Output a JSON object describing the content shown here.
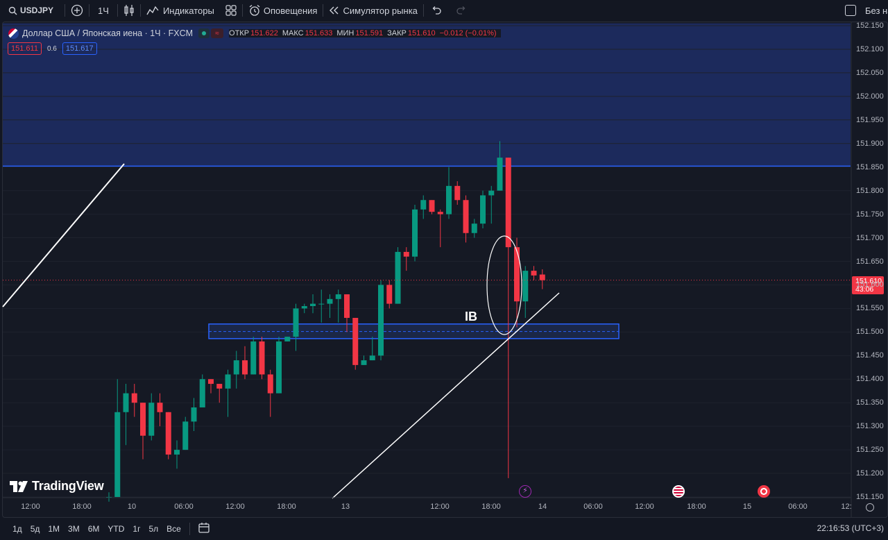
{
  "toolbar": {
    "symbol": "USDJPY",
    "interval": "1Ч",
    "indicators_label": "Индикаторы",
    "alerts_label": "Оповещения",
    "replay_label": "Симулятор рынка",
    "right_label": "Без на"
  },
  "legend": {
    "title": "Доллар США / Японская иена · 1Ч · FXCM",
    "open_key": "ОТКР",
    "open": "151.622",
    "high_key": "МАКС",
    "high": "151.633",
    "low_key": "МИН",
    "low": "151.591",
    "close_key": "ЗАКР",
    "close": "151.610",
    "change": "−0.012 (−0.01%)",
    "sell_price": "151.611",
    "spread": "0.6",
    "buy_price": "151.617"
  },
  "annotations": {
    "ib_label": "IB"
  },
  "last_price": {
    "price": "151.610",
    "countdown": "43:06"
  },
  "logo_text": "TradingView",
  "colors": {
    "background": "#131722",
    "up": "#089981",
    "down": "#f23645",
    "zone": "#2962ff"
  },
  "chart_data": {
    "type": "candlestick",
    "symbol": "USDJPY",
    "y_ticks": [
      "151.150",
      "151.200",
      "151.250",
      "151.300",
      "151.350",
      "151.400",
      "151.450",
      "151.500",
      "151.550",
      "151.600",
      "151.650",
      "151.700",
      "151.750",
      "151.800",
      "151.850",
      "151.900",
      "151.950",
      "152.000",
      "152.050",
      "152.100",
      "152.150"
    ],
    "x_ticks": [
      "12:00",
      "18:00",
      "10",
      "06:00",
      "12:00",
      "18:00",
      "13",
      "12:00",
      "18:00",
      "14",
      "06:00",
      "12:00",
      "18:00",
      "15",
      "06:00",
      "12:"
    ],
    "ylim": [
      151.15,
      152.155
    ],
    "candles": [
      {
        "o": 151.15,
        "h": 151.16,
        "l": 151.14,
        "c": 151.15
      },
      {
        "o": 151.15,
        "h": 151.4,
        "l": 151.15,
        "c": 151.33
      },
      {
        "o": 151.33,
        "h": 151.39,
        "l": 151.26,
        "c": 151.37
      },
      {
        "o": 151.37,
        "h": 151.39,
        "l": 151.32,
        "c": 151.35
      },
      {
        "o": 151.35,
        "h": 151.35,
        "l": 151.23,
        "c": 151.28
      },
      {
        "o": 151.28,
        "h": 151.37,
        "l": 151.27,
        "c": 151.35
      },
      {
        "o": 151.35,
        "h": 151.37,
        "l": 151.3,
        "c": 151.33
      },
      {
        "o": 151.33,
        "h": 151.33,
        "l": 151.23,
        "c": 151.24
      },
      {
        "o": 151.24,
        "h": 151.27,
        "l": 151.21,
        "c": 151.25
      },
      {
        "o": 151.25,
        "h": 151.32,
        "l": 151.25,
        "c": 151.31
      },
      {
        "o": 151.31,
        "h": 151.36,
        "l": 151.29,
        "c": 151.34
      },
      {
        "o": 151.34,
        "h": 151.41,
        "l": 151.34,
        "c": 151.4
      },
      {
        "o": 151.4,
        "h": 151.4,
        "l": 151.37,
        "c": 151.39
      },
      {
        "o": 151.39,
        "h": 151.39,
        "l": 151.35,
        "c": 151.38
      },
      {
        "o": 151.38,
        "h": 151.42,
        "l": 151.32,
        "c": 151.41
      },
      {
        "o": 151.41,
        "h": 151.46,
        "l": 151.38,
        "c": 151.44
      },
      {
        "o": 151.44,
        "h": 151.47,
        "l": 151.4,
        "c": 151.41
      },
      {
        "o": 151.41,
        "h": 151.49,
        "l": 151.41,
        "c": 151.48
      },
      {
        "o": 151.48,
        "h": 151.49,
        "l": 151.4,
        "c": 151.41
      },
      {
        "o": 151.41,
        "h": 151.42,
        "l": 151.32,
        "c": 151.37
      },
      {
        "o": 151.37,
        "h": 151.49,
        "l": 151.37,
        "c": 151.48
      },
      {
        "o": 151.48,
        "h": 151.49,
        "l": 151.48,
        "c": 151.49
      },
      {
        "o": 151.49,
        "h": 151.56,
        "l": 151.46,
        "c": 151.55
      },
      {
        "o": 151.55,
        "h": 151.56,
        "l": 151.54,
        "c": 151.555
      },
      {
        "o": 151.555,
        "h": 151.58,
        "l": 151.54,
        "c": 151.56
      },
      {
        "o": 151.56,
        "h": 151.59,
        "l": 151.52,
        "c": 151.56
      },
      {
        "o": 151.56,
        "h": 151.58,
        "l": 151.53,
        "c": 151.57
      },
      {
        "o": 151.57,
        "h": 151.59,
        "l": 151.52,
        "c": 151.58
      },
      {
        "o": 151.58,
        "h": 151.58,
        "l": 151.5,
        "c": 151.53
      },
      {
        "o": 151.53,
        "h": 151.53,
        "l": 151.42,
        "c": 151.43
      },
      {
        "o": 151.43,
        "h": 151.45,
        "l": 151.43,
        "c": 151.44
      },
      {
        "o": 151.44,
        "h": 151.49,
        "l": 151.44,
        "c": 151.45
      },
      {
        "o": 151.45,
        "h": 151.61,
        "l": 151.44,
        "c": 151.6
      },
      {
        "o": 151.6,
        "h": 151.61,
        "l": 151.55,
        "c": 151.56
      },
      {
        "o": 151.56,
        "h": 151.68,
        "l": 151.56,
        "c": 151.67
      },
      {
        "o": 151.67,
        "h": 151.68,
        "l": 151.63,
        "c": 151.66
      },
      {
        "o": 151.66,
        "h": 151.77,
        "l": 151.65,
        "c": 151.76
      },
      {
        "o": 151.76,
        "h": 151.79,
        "l": 151.74,
        "c": 151.78
      },
      {
        "o": 151.78,
        "h": 151.78,
        "l": 151.75,
        "c": 151.755
      },
      {
        "o": 151.755,
        "h": 151.76,
        "l": 151.68,
        "c": 151.75
      },
      {
        "o": 151.75,
        "h": 151.85,
        "l": 151.74,
        "c": 151.81
      },
      {
        "o": 151.81,
        "h": 151.82,
        "l": 151.77,
        "c": 151.78
      },
      {
        "o": 151.78,
        "h": 151.79,
        "l": 151.69,
        "c": 151.71
      },
      {
        "o": 151.71,
        "h": 151.74,
        "l": 151.7,
        "c": 151.73
      },
      {
        "o": 151.73,
        "h": 151.8,
        "l": 151.72,
        "c": 151.79
      },
      {
        "o": 151.79,
        "h": 151.81,
        "l": 151.73,
        "c": 151.8
      },
      {
        "o": 151.8,
        "h": 151.905,
        "l": 151.8,
        "c": 151.87
      },
      {
        "o": 151.87,
        "h": 151.87,
        "l": 151.19,
        "c": 151.68
      },
      {
        "o": 151.68,
        "h": 151.7,
        "l": 151.51,
        "c": 151.565
      },
      {
        "o": 151.565,
        "h": 151.64,
        "l": 151.53,
        "c": 151.63
      },
      {
        "o": 151.63,
        "h": 151.64,
        "l": 151.61,
        "c": 151.62
      },
      {
        "o": 151.622,
        "h": 151.633,
        "l": 151.591,
        "c": 151.61
      }
    ],
    "last_price": 151.61,
    "levels": {
      "resistance_zone": [
        151.852,
        152.155
      ],
      "ib_zone": [
        151.486,
        151.517
      ],
      "ib_mid": 151.501
    },
    "grid": true
  },
  "bottom": {
    "ranges": [
      "1д",
      "5д",
      "1М",
      "3М",
      "6М",
      "YTD",
      "1г",
      "5л",
      "Все"
    ],
    "clock": "22:16:53 (UTC+3)"
  }
}
